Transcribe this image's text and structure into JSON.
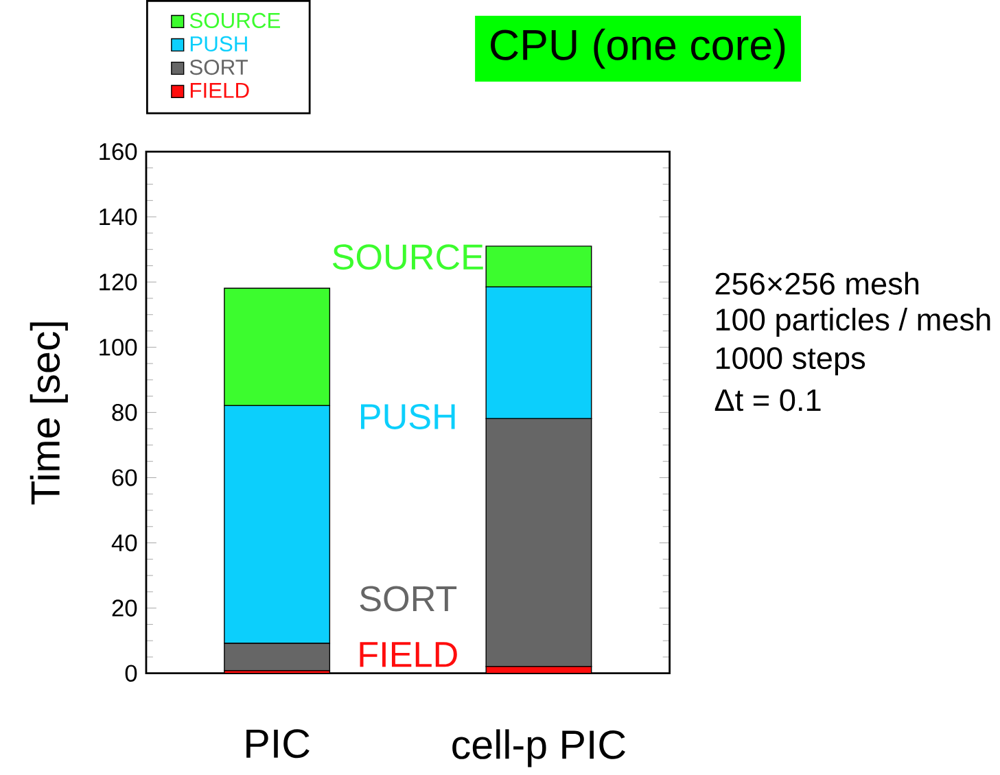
{
  "chart_data": {
    "type": "bar",
    "stacked": true,
    "title": "CPU (one core)",
    "ylabel": "Time [sec]",
    "categories": [
      "PIC",
      "cell-p PIC"
    ],
    "series": [
      {
        "name": "FIELD",
        "color": "#ff0d0d",
        "values": [
          0.8,
          2.1
        ]
      },
      {
        "name": "SORT",
        "color": "#666666",
        "values": [
          8.4,
          76.0
        ]
      },
      {
        "name": "PUSH",
        "color": "#0ccffc",
        "values": [
          72.9,
          40.4
        ]
      },
      {
        "name": "SOURCE",
        "color": "#3cfc2e",
        "values": [
          36.0,
          12.5
        ]
      }
    ],
    "ylim": [
      0,
      160
    ],
    "yticks": [
      0,
      20,
      40,
      60,
      80,
      100,
      120,
      140,
      160
    ],
    "legend": "top left",
    "annotations": [
      "SOURCE",
      "PUSH",
      "SORT",
      "FIELD",
      "256×256 mesh",
      "100 particles / mesh",
      "1000 steps",
      "Δt = 0.1"
    ]
  }
}
